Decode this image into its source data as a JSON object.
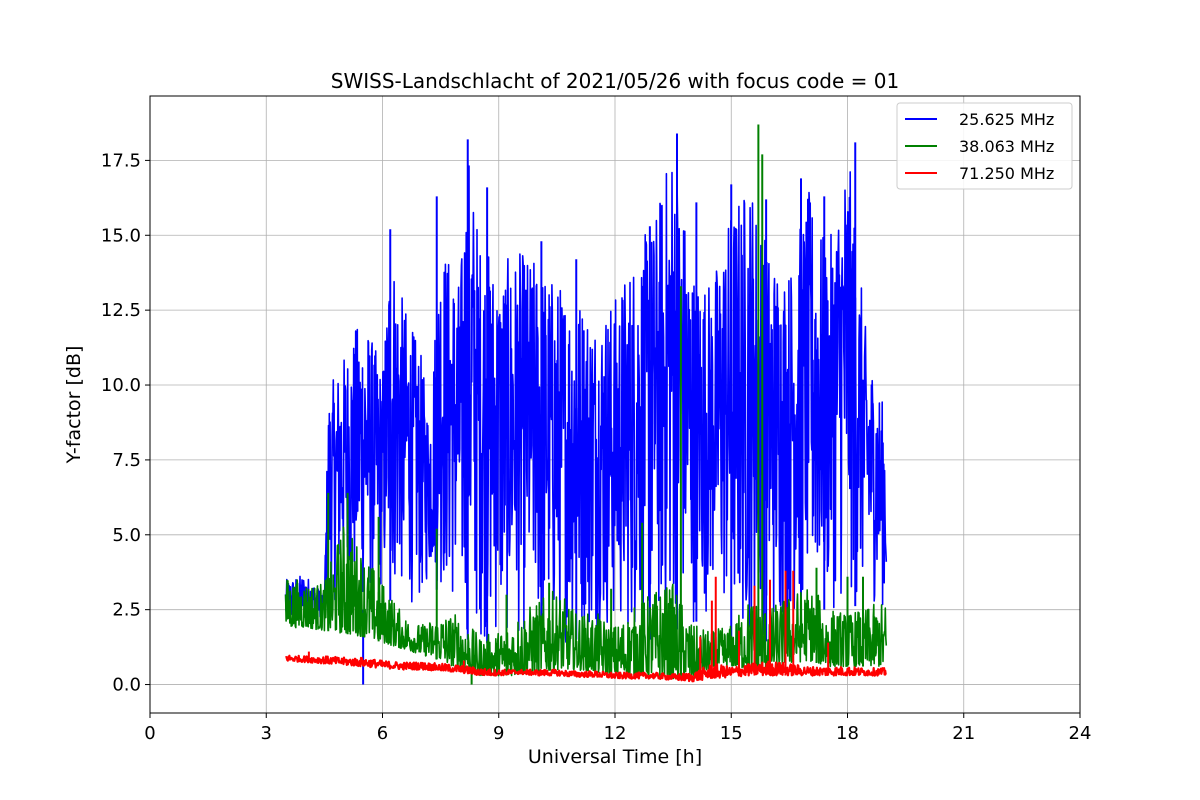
{
  "chart_data": {
    "type": "line",
    "title": "SWISS-Landschlacht of 2021/05/26 with focus code = 01",
    "xlabel": "Universal Time [h]",
    "ylabel": "Y-factor [dB]",
    "xlim": [
      0,
      24
    ],
    "ylim": [
      -0.95,
      19.65
    ],
    "xticks": [
      0,
      3,
      6,
      9,
      12,
      15,
      18,
      21,
      24
    ],
    "xtick_labels": [
      "0",
      "3",
      "6",
      "9",
      "12",
      "15",
      "18",
      "21",
      "24"
    ],
    "yticks": [
      0,
      2.5,
      5,
      7.5,
      10,
      12.5,
      15,
      17.5
    ],
    "ytick_labels": [
      "0.0",
      "2.5",
      "5.0",
      "7.5",
      "10.0",
      "12.5",
      "15.0",
      "17.5"
    ],
    "grid": true,
    "legend_position": "top-right",
    "series": [
      {
        "name": "25.625 MHz",
        "color": "#0000ff",
        "envelope": {
          "x": [
            3.5,
            4.0,
            4.5,
            4.6,
            5.0,
            5.5,
            6.0,
            6.2,
            6.5,
            7.0,
            7.2,
            7.5,
            8.0,
            8.2,
            8.5,
            9.0,
            9.5,
            10.0,
            10.5,
            11.0,
            11.5,
            12.0,
            12.5,
            13.0,
            13.5,
            14.0,
            14.5,
            15.0,
            15.5,
            16.0,
            16.5,
            17.0,
            17.5,
            18.0,
            18.5,
            19.0
          ],
          "low": [
            1.8,
            2.0,
            2.3,
            2.5,
            3.0,
            2.5,
            3.0,
            2.8,
            2.8,
            2.5,
            3.5,
            3.0,
            2.0,
            1.5,
            1.5,
            1.2,
            1.5,
            1.5,
            1.2,
            1.5,
            1.5,
            1.5,
            1.5,
            1.5,
            1.8,
            2.0,
            2.5,
            1.5,
            1.2,
            1.5,
            2.0,
            2.5,
            2.5,
            2.5,
            2.8,
            2.5
          ],
          "high": [
            3.5,
            3.7,
            3.0,
            9.8,
            11.0,
            12.5,
            10.5,
            15.0,
            13.0,
            11.0,
            9.0,
            15.0,
            13.5,
            18.2,
            15.0,
            14.0,
            14.5,
            14.2,
            13.5,
            13.2,
            12.5,
            13.0,
            14.5,
            15.5,
            18.4,
            14.0,
            13.5,
            16.0,
            17.0,
            14.5,
            14.0,
            16.5,
            14.5,
            18.1,
            11.5,
            9.0
          ]
        },
        "spikes": [
          [
            5.5,
            0.0
          ],
          [
            6.2,
            15.2
          ],
          [
            7.4,
            16.3
          ],
          [
            8.2,
            18.2
          ],
          [
            8.7,
            16.6
          ],
          [
            10.1,
            14.8
          ],
          [
            11.0,
            14.2
          ],
          [
            12.9,
            15.3
          ],
          [
            13.6,
            18.4
          ],
          [
            14.1,
            16.1
          ],
          [
            15.0,
            16.7
          ],
          [
            15.9,
            16.2
          ],
          [
            16.8,
            16.9
          ],
          [
            17.4,
            16.3
          ],
          [
            18.2,
            18.1
          ]
        ]
      },
      {
        "name": "38.063 MHz",
        "color": "#008000",
        "envelope": {
          "x": [
            3.5,
            4.0,
            4.5,
            5.0,
            5.5,
            6.0,
            6.5,
            7.0,
            7.5,
            8.0,
            8.5,
            9.0,
            9.5,
            10.0,
            10.5,
            11.0,
            11.5,
            12.0,
            12.5,
            13.0,
            13.5,
            14.0,
            14.5,
            15.0,
            15.5,
            16.0,
            16.5,
            17.0,
            17.5,
            18.0,
            18.5,
            19.0
          ],
          "low": [
            1.9,
            1.9,
            1.8,
            1.7,
            1.6,
            1.4,
            1.2,
            1.0,
            0.8,
            0.5,
            0.3,
            0.3,
            0.3,
            0.4,
            0.5,
            0.5,
            0.4,
            0.3,
            0.3,
            0.3,
            0.2,
            0.2,
            0.4,
            0.6,
            0.5,
            0.5,
            0.7,
            0.8,
            0.6,
            0.6,
            0.6,
            0.6
          ],
          "high": [
            3.6,
            3.5,
            3.4,
            5.5,
            4.5,
            3.5,
            2.4,
            2.0,
            2.4,
            2.4,
            1.6,
            1.8,
            2.4,
            2.8,
            3.2,
            2.4,
            2.4,
            2.0,
            2.6,
            3.2,
            3.4,
            2.0,
            1.8,
            2.0,
            3.0,
            2.6,
            3.0,
            3.4,
            2.6,
            2.4,
            2.6,
            2.8
          ]
        },
        "spikes": [
          [
            4.6,
            6.4
          ],
          [
            5.1,
            6.4
          ],
          [
            5.9,
            5.6
          ],
          [
            7.4,
            5.2
          ],
          [
            8.3,
            0.0
          ],
          [
            9.2,
            3.0
          ],
          [
            10.3,
            3.4
          ],
          [
            11.9,
            3.2
          ],
          [
            12.7,
            5.4
          ],
          [
            13.7,
            13.3
          ],
          [
            13.7,
            0.3
          ],
          [
            15.7,
            18.7
          ],
          [
            15.8,
            17.7
          ],
          [
            17.2,
            3.9
          ],
          [
            18.0,
            3.6
          ],
          [
            18.4,
            3.6
          ]
        ]
      },
      {
        "name": "71.250 MHz",
        "color": "#ff0000",
        "envelope": {
          "x": [
            3.5,
            4.0,
            4.5,
            5.0,
            5.5,
            6.0,
            6.5,
            7.0,
            7.5,
            8.0,
            8.5,
            9.0,
            9.5,
            10.0,
            10.5,
            11.0,
            11.5,
            12.0,
            12.5,
            13.0,
            13.5,
            14.0,
            14.5,
            15.0,
            15.5,
            16.0,
            16.5,
            17.0,
            17.5,
            18.0,
            18.5,
            19.0
          ],
          "low": [
            0.78,
            0.75,
            0.7,
            0.65,
            0.6,
            0.55,
            0.5,
            0.5,
            0.45,
            0.4,
            0.3,
            0.3,
            0.35,
            0.3,
            0.3,
            0.25,
            0.25,
            0.2,
            0.2,
            0.2,
            0.15,
            0.1,
            0.2,
            0.25,
            0.3,
            0.3,
            0.3,
            0.3,
            0.3,
            0.3,
            0.3,
            0.3
          ],
          "high": [
            1.0,
            0.95,
            0.95,
            0.9,
            0.9,
            0.8,
            0.75,
            0.75,
            0.7,
            0.65,
            0.55,
            0.5,
            0.5,
            0.5,
            0.5,
            0.45,
            0.45,
            0.4,
            0.4,
            0.4,
            0.35,
            0.4,
            0.7,
            0.6,
            0.7,
            0.8,
            0.7,
            0.6,
            0.6,
            0.6,
            0.55,
            0.55
          ]
        },
        "spikes": [
          [
            4.1,
            1.1
          ],
          [
            8.1,
            0.8
          ],
          [
            14.2,
            1.6
          ],
          [
            14.5,
            2.8
          ],
          [
            14.6,
            3.6
          ],
          [
            15.2,
            1.8
          ],
          [
            15.6,
            3.3
          ],
          [
            16.0,
            3.5
          ],
          [
            16.4,
            3.8
          ],
          [
            16.6,
            3.8
          ],
          [
            17.5,
            1.4
          ]
        ]
      }
    ]
  }
}
